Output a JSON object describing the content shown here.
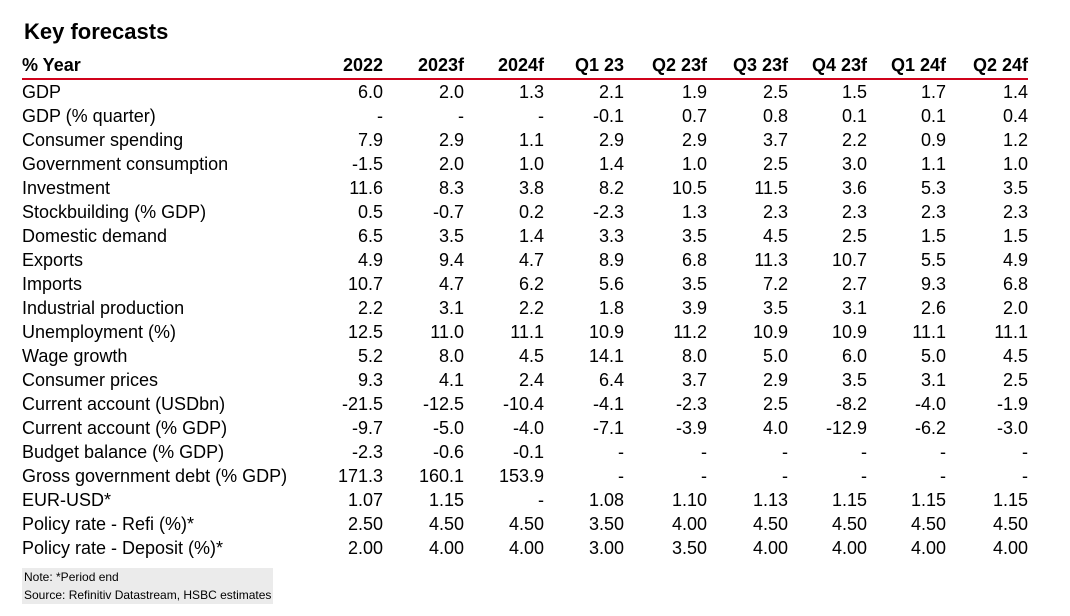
{
  "title": "Key forecasts",
  "table": {
    "headers": [
      "% Year",
      "2022",
      "2023f",
      "2024f",
      "Q1 23",
      "Q2 23f",
      "Q3 23f",
      "Q4 23f",
      "Q1 24f",
      "Q2 24f"
    ],
    "rows": [
      {
        "label": "GDP",
        "values": [
          "6.0",
          "2.0",
          "1.3",
          "2.1",
          "1.9",
          "2.5",
          "1.5",
          "1.7",
          "1.4"
        ]
      },
      {
        "label": "GDP (% quarter)",
        "values": [
          "-",
          "-",
          "-",
          "-0.1",
          "0.7",
          "0.8",
          "0.1",
          "0.1",
          "0.4"
        ]
      },
      {
        "label": "Consumer spending",
        "values": [
          "7.9",
          "2.9",
          "1.1",
          "2.9",
          "2.9",
          "3.7",
          "2.2",
          "0.9",
          "1.2"
        ]
      },
      {
        "label": "Government consumption",
        "values": [
          "-1.5",
          "2.0",
          "1.0",
          "1.4",
          "1.0",
          "2.5",
          "3.0",
          "1.1",
          "1.0"
        ]
      },
      {
        "label": "Investment",
        "values": [
          "11.6",
          "8.3",
          "3.8",
          "8.2",
          "10.5",
          "11.5",
          "3.6",
          "5.3",
          "3.5"
        ]
      },
      {
        "label": "Stockbuilding (% GDP)",
        "values": [
          "0.5",
          "-0.7",
          "0.2",
          "-2.3",
          "1.3",
          "2.3",
          "2.3",
          "2.3",
          "2.3"
        ]
      },
      {
        "label": "Domestic demand",
        "values": [
          "6.5",
          "3.5",
          "1.4",
          "3.3",
          "3.5",
          "4.5",
          "2.5",
          "1.5",
          "1.5"
        ]
      },
      {
        "label": "Exports",
        "values": [
          "4.9",
          "9.4",
          "4.7",
          "8.9",
          "6.8",
          "11.3",
          "10.7",
          "5.5",
          "4.9"
        ]
      },
      {
        "label": "Imports",
        "values": [
          "10.7",
          "4.7",
          "6.2",
          "5.6",
          "3.5",
          "7.2",
          "2.7",
          "9.3",
          "6.8"
        ]
      },
      {
        "label": "Industrial production",
        "values": [
          "2.2",
          "3.1",
          "2.2",
          "1.8",
          "3.9",
          "3.5",
          "3.1",
          "2.6",
          "2.0"
        ]
      },
      {
        "label": "Unemployment (%)",
        "values": [
          "12.5",
          "11.0",
          "11.1",
          "10.9",
          "11.2",
          "10.9",
          "10.9",
          "11.1",
          "11.1"
        ]
      },
      {
        "label": "Wage growth",
        "values": [
          "5.2",
          "8.0",
          "4.5",
          "14.1",
          "8.0",
          "5.0",
          "6.0",
          "5.0",
          "4.5"
        ]
      },
      {
        "label": "Consumer prices",
        "values": [
          "9.3",
          "4.1",
          "2.4",
          "6.4",
          "3.7",
          "2.9",
          "3.5",
          "3.1",
          "2.5"
        ]
      },
      {
        "label": "Current account (USDbn)",
        "values": [
          "-21.5",
          "-12.5",
          "-10.4",
          "-4.1",
          "-2.3",
          "2.5",
          "-8.2",
          "-4.0",
          "-1.9"
        ]
      },
      {
        "label": "Current account (% GDP)",
        "values": [
          "-9.7",
          "-5.0",
          "-4.0",
          "-7.1",
          "-3.9",
          "4.0",
          "-12.9",
          "-6.2",
          "-3.0"
        ]
      },
      {
        "label": "Budget balance (% GDP)",
        "values": [
          "-2.3",
          "-0.6",
          "-0.1",
          "-",
          "-",
          "-",
          "-",
          "-",
          "-"
        ]
      },
      {
        "label": "Gross government debt (% GDP)",
        "values": [
          "171.3",
          "160.1",
          "153.9",
          "-",
          "-",
          "-",
          "-",
          "-",
          "-"
        ]
      },
      {
        "label": "EUR-USD*",
        "values": [
          "1.07",
          "1.15",
          "-",
          "1.08",
          "1.10",
          "1.13",
          "1.15",
          "1.15",
          "1.15"
        ]
      },
      {
        "label": "Policy rate - Refi (%)*",
        "values": [
          "2.50",
          "4.50",
          "4.50",
          "3.50",
          "4.00",
          "4.50",
          "4.50",
          "4.50",
          "4.50"
        ]
      },
      {
        "label": "Policy rate - Deposit (%)*",
        "values": [
          "2.00",
          "4.00",
          "4.00",
          "3.00",
          "3.50",
          "4.00",
          "4.00",
          "4.00",
          "4.00"
        ]
      }
    ]
  },
  "notes": {
    "note": "Note: *Period end",
    "source": "Source: Refinitiv Datastream, HSBC estimates"
  },
  "colors": {
    "rule": "#d0021b",
    "notes_bg": "#ebebeb"
  }
}
